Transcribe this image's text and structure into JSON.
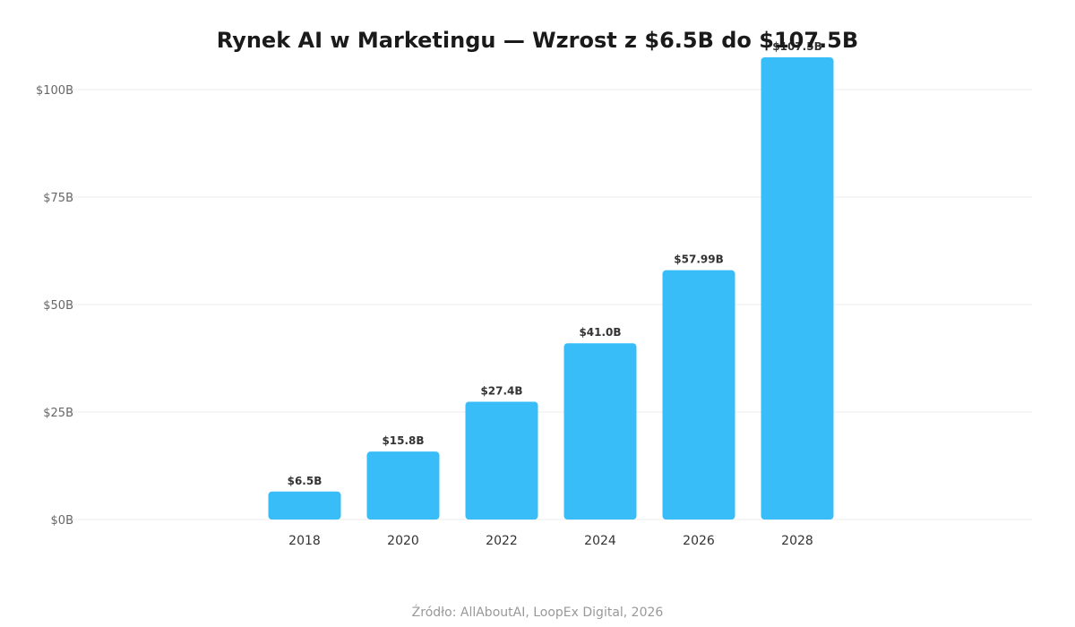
{
  "chart_data": {
    "type": "bar",
    "title": "Rynek AI w Marketingu — Wzrost z $6.5B do $107.5B",
    "categories": [
      "2018",
      "2020",
      "2022",
      "2024",
      "2026",
      "2028"
    ],
    "values": [
      6.5,
      15.8,
      27.4,
      41.0,
      57.99,
      107.5
    ],
    "data_labels": [
      "$6.5B",
      "$15.8B",
      "$27.4B",
      "$41.0B",
      "$57.99B",
      "$107.5B"
    ],
    "yticks": [
      0,
      25,
      50,
      75,
      100
    ],
    "ytick_labels": [
      "$0B",
      "$25B",
      "$50B",
      "$75B",
      "$100B"
    ],
    "ylim": [
      0,
      107.5
    ],
    "xlabel": "",
    "ylabel": "",
    "grid": true,
    "bar_color": "#38bdf8",
    "source": "Źródło: AllAboutAI, LoopEx Digital, 2026"
  }
}
